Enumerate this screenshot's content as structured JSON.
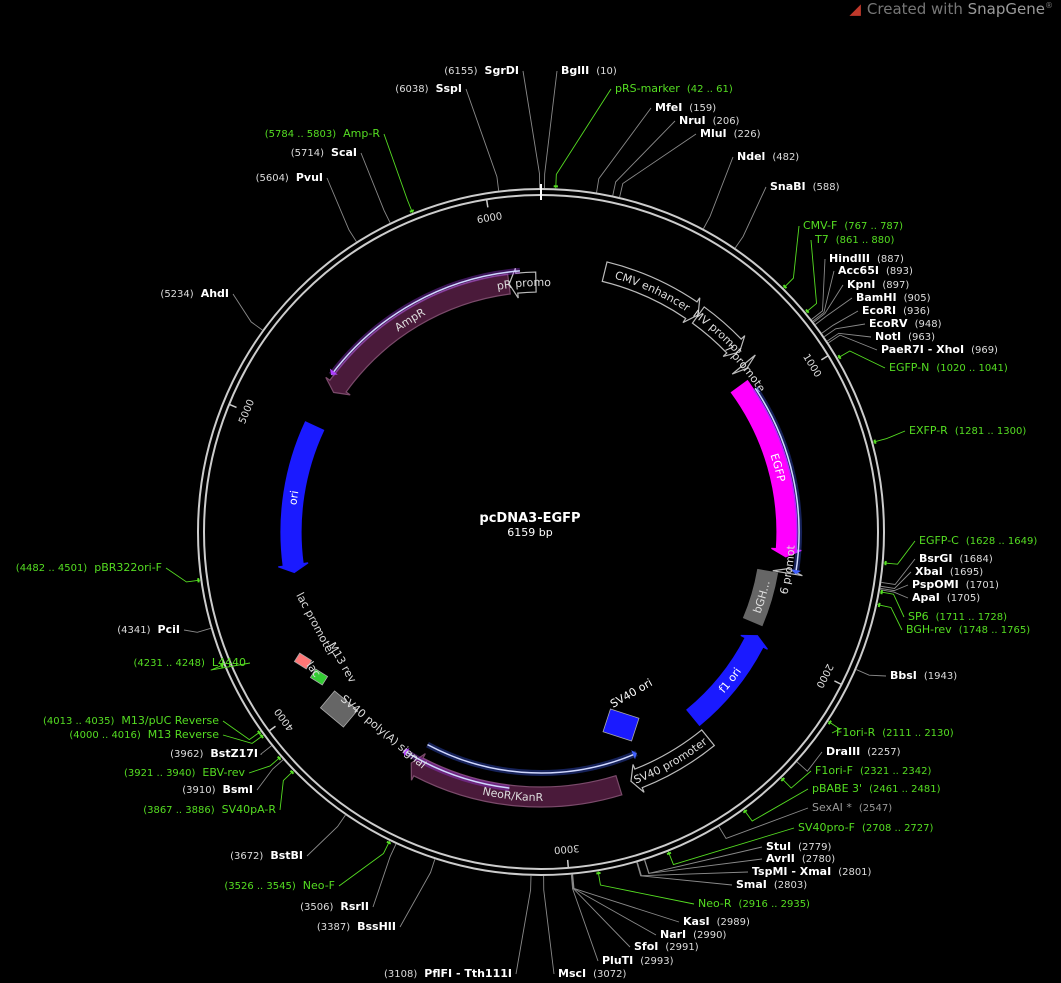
{
  "brand": {
    "text": "Created with",
    "product": "SnapGene",
    "mark": "®"
  },
  "plasmid": {
    "name": "pcDNA3-EGFP",
    "size": "6159 bp"
  },
  "ticks": [
    {
      "label": "1000",
      "pos": 1000
    },
    {
      "label": "2000",
      "pos": 2000
    },
    {
      "label": "3000",
      "pos": 3000
    },
    {
      "label": "4000",
      "pos": 4000
    },
    {
      "label": "5000",
      "pos": 5000
    },
    {
      "label": "6000",
      "pos": 6000
    }
  ],
  "features": [
    {
      "name": "CMV enhancer",
      "type": "outline",
      "start": 235,
      "end": 614,
      "dir": 1,
      "color": "#000000",
      "stroke": "#bbbbbb",
      "text": "#dddddd"
    },
    {
      "name": "CMV promoter",
      "type": "outline",
      "start": 615,
      "end": 818,
      "dir": 1,
      "color": "#000000",
      "stroke": "#bbbbbb",
      "text": "#dddddd"
    },
    {
      "name": "T7 promoter",
      "type": "outline",
      "start": 863,
      "end": 881,
      "dir": 1,
      "color": "#000000",
      "stroke": "#bbbbbb",
      "text": "#dddddd"
    },
    {
      "name": "EGFP",
      "type": "solid",
      "start": 920,
      "end": 1639,
      "dir": 1,
      "color": "#ff00ff",
      "text": "#ffffff"
    },
    {
      "name": "SP6 promoter",
      "type": "outline",
      "start": 1684,
      "end": 1702,
      "dir": -1,
      "color": "#000000",
      "stroke": "#bbbbbb",
      "text": "#dddddd"
    },
    {
      "name": "bGH...",
      "type": "box",
      "start": 1708,
      "end": 1932,
      "dir": 0,
      "color": "#666666",
      "text": "#dddddd"
    },
    {
      "name": "f1 ori",
      "type": "solid",
      "start": 1978,
      "end": 2406,
      "dir": -1,
      "color": "#1a1aff",
      "text": "#ffffff"
    },
    {
      "name": "SV40 promoter",
      "type": "outline",
      "start": 2411,
      "end": 2740,
      "dir": 1,
      "color": "#000000",
      "stroke": "#bbbbbb",
      "text": "#dddddd"
    },
    {
      "name": "NeoR/KanR",
      "type": "solid",
      "start": 2787,
      "end": 3581,
      "dir": 1,
      "color": "#4a1a3a",
      "stroke": "#7a4a6a",
      "text": "#dddddd"
    },
    {
      "name": "AmpR",
      "type": "solid",
      "start": 5200,
      "end": 6033,
      "dir": -1,
      "color": "#4a1a3a",
      "stroke": "#7a4a6a",
      "text": "#dddddd"
    },
    {
      "name": "AmpR promoter",
      "type": "outline",
      "start": 6034,
      "end": 6139,
      "dir": -1,
      "color": "#000000",
      "stroke": "#bbbbbb",
      "text": "#dddddd"
    },
    {
      "name": "ori",
      "type": "solid",
      "start": 4460,
      "end": 5048,
      "dir": -1,
      "color": "#1a1aff",
      "text": "#ffffff"
    }
  ],
  "inner_features": [
    {
      "name": "SV40 ori",
      "color": "#1a1aff",
      "text": "#ffffff"
    },
    {
      "name": "SV40 poly(A) signal",
      "color": "#666666",
      "text": "#dddddd"
    },
    {
      "name": "lac promoter",
      "color": "#000000",
      "text": "#dddddd"
    },
    {
      "name": "M13 rev",
      "color": "#000000",
      "text": "#dddddd"
    },
    {
      "name": "lac",
      "color": "#ff7777",
      "text": "#dddddd"
    }
  ],
  "orf_arrows": [
    {
      "start": 960,
      "end": 1700,
      "dir": 1,
      "radius": 258,
      "color": "#4060ff"
    },
    {
      "start": 2680,
      "end": 3560,
      "dir": -1,
      "radius": 241,
      "color": "#4060ff"
    },
    {
      "start": 3200,
      "end": 3630,
      "dir": 1,
      "radius": 258,
      "color": "#b040ff"
    },
    {
      "start": 5250,
      "end": 6080,
      "dir": -1,
      "radius": 262,
      "color": "#b040ff"
    }
  ],
  "labels": {
    "right": [
      {
        "name": "Ndel",
        "num": "(482)",
        "kind": "site"
      },
      {
        "name": "SnaBI",
        "num": "(588)",
        "kind": "site"
      },
      {
        "name": "CMV-F",
        "num": "(767 .. 787)",
        "kind": "primer"
      },
      {
        "name": "T7",
        "num": "(861 .. 880)",
        "kind": "primer"
      },
      {
        "name": "HindIII",
        "num": "(887)",
        "kind": "site"
      },
      {
        "name": "Acc65I",
        "num": "(893)",
        "kind": "site"
      },
      {
        "name": "KpnI",
        "num": "(897)",
        "kind": "site"
      },
      {
        "name": "BamHI",
        "num": "(905)",
        "kind": "site"
      },
      {
        "name": "EcoRI",
        "num": "(936)",
        "kind": "site"
      },
      {
        "name": "EcoRV",
        "num": "(948)",
        "kind": "site"
      },
      {
        "name": "NotI",
        "num": "(963)",
        "kind": "site"
      },
      {
        "name": "PaeR7I - XhoI",
        "num": "(969)",
        "kind": "site"
      },
      {
        "name": "EGFP-N",
        "num": "(1020 .. 1041)",
        "kind": "primer"
      },
      {
        "name": "EXFP-R",
        "num": "(1281 .. 1300)",
        "kind": "primer"
      },
      {
        "name": "EGFP-C",
        "num": "(1628 .. 1649)",
        "kind": "primer"
      },
      {
        "name": "BsrGI",
        "num": "(1684)",
        "kind": "site"
      },
      {
        "name": "XbaI",
        "num": "(1695)",
        "kind": "site"
      },
      {
        "name": "PspOMI",
        "num": "(1701)",
        "kind": "site"
      },
      {
        "name": "ApaI",
        "num": "(1705)",
        "kind": "site"
      },
      {
        "name": "SP6",
        "num": "(1711 .. 1728)",
        "kind": "primer"
      },
      {
        "name": "BGH-rev",
        "num": "(1748 .. 1765)",
        "kind": "primer"
      },
      {
        "name": "BbsI",
        "num": "(1943)",
        "kind": "site"
      },
      {
        "name": "F1ori-R",
        "num": "(2111 .. 2130)",
        "kind": "primer"
      },
      {
        "name": "DraIII",
        "num": "(2257)",
        "kind": "site"
      },
      {
        "name": "F1ori-F",
        "num": "(2321 .. 2342)",
        "kind": "primer"
      },
      {
        "name": "pBABE 3'",
        "num": "(2461 .. 2481)",
        "kind": "primer"
      },
      {
        "name": "SexAI *",
        "num": "(2547)",
        "kind": "gray"
      },
      {
        "name": "SV40pro-F",
        "num": "(2708 .. 2727)",
        "kind": "primer"
      },
      {
        "name": "StuI",
        "num": "(2779)",
        "kind": "site"
      },
      {
        "name": "AvrII",
        "num": "(2780)",
        "kind": "site"
      },
      {
        "name": "TspMI - XmaI",
        "num": "(2801)",
        "kind": "site"
      },
      {
        "name": "SmaI",
        "num": "(2803)",
        "kind": "site"
      },
      {
        "name": "Neo-R",
        "num": "(2916 .. 2935)",
        "kind": "primer"
      },
      {
        "name": "KasI",
        "num": "(2989)",
        "kind": "site"
      },
      {
        "name": "NarI",
        "num": "(2990)",
        "kind": "site"
      },
      {
        "name": "SfoI",
        "num": "(2991)",
        "kind": "site"
      },
      {
        "name": "PluTI",
        "num": "(2993)",
        "kind": "site"
      },
      {
        "name": "MscI",
        "num": "(3072)",
        "kind": "site"
      }
    ],
    "left": [
      {
        "name": "PflFI - Tth111I",
        "num": "(3108)",
        "kind": "site"
      },
      {
        "name": "BssHII",
        "num": "(3387)",
        "kind": "site"
      },
      {
        "name": "RsrII",
        "num": "(3506)",
        "kind": "site"
      },
      {
        "name": "Neo-F",
        "num": "(3526 .. 3545)",
        "kind": "primer"
      },
      {
        "name": "BstBI",
        "num": "(3672)",
        "kind": "site"
      },
      {
        "name": "SV40pA-R",
        "num": "(3867 .. 3886)",
        "kind": "primer"
      },
      {
        "name": "BsmI",
        "num": "(3910)",
        "kind": "site"
      },
      {
        "name": "EBV-rev",
        "num": "(3921 .. 3940)",
        "kind": "primer"
      },
      {
        "name": "BstZ17I",
        "num": "(3962)",
        "kind": "site"
      },
      {
        "name": "M13 Reverse",
        "num": "(4000 .. 4016)",
        "kind": "primer"
      },
      {
        "name": "M13/pUC Reverse",
        "num": "(4013 .. 4035)",
        "kind": "primer"
      },
      {
        "name": "L4440",
        "num": "(4231 .. 4248)",
        "kind": "primer"
      },
      {
        "name": "PciI",
        "num": "(4341)",
        "kind": "site"
      },
      {
        "name": "pBR322ori-F",
        "num": "(4482 .. 4501)",
        "kind": "primer"
      },
      {
        "name": "AhdI",
        "num": "(5234)",
        "kind": "site"
      },
      {
        "name": "PvuI",
        "num": "(5604)",
        "kind": "site"
      },
      {
        "name": "ScaI",
        "num": "(5714)",
        "kind": "site"
      },
      {
        "name": "Amp-R",
        "num": "(5784 .. 5803)",
        "kind": "primer"
      },
      {
        "name": "SspI",
        "num": "(6038)",
        "kind": "site"
      },
      {
        "name": "SgrDI",
        "num": "(6155)",
        "kind": "site"
      }
    ],
    "top": [
      {
        "name": "BglII",
        "num": "(10)",
        "kind": "site"
      },
      {
        "name": "pRS-marker",
        "num": "(42 .. 61)",
        "kind": "primer"
      },
      {
        "name": "MfeI",
        "num": "(159)",
        "kind": "site"
      },
      {
        "name": "NruI",
        "num": "(206)",
        "kind": "site"
      },
      {
        "name": "MluI",
        "num": "(226)",
        "kind": "site"
      }
    ]
  },
  "colors": {
    "site": "#ffffff",
    "num": "#dddddd",
    "primer": "#55dd22",
    "gray": "#999999",
    "line": "#8a8a8a",
    "backbone": "#cccccc"
  }
}
